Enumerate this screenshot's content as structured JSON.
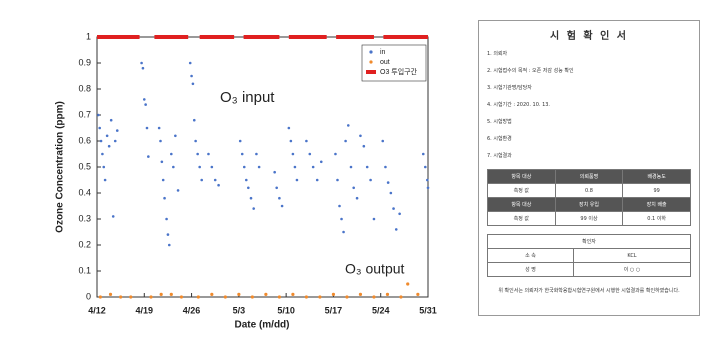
{
  "chart_data": {
    "type": "scatter",
    "ylabel": "Ozone Concentration (ppm)",
    "xlabel": "Date (m/dd)",
    "ylim": [
      0,
      1
    ],
    "yticks": [
      0,
      0.1,
      0.2,
      0.3,
      0.4,
      0.5,
      0.6,
      0.7,
      0.8,
      0.9,
      1
    ],
    "xlim": [
      0,
      49
    ],
    "xticks": [
      {
        "value": 0,
        "label": "4/12"
      },
      {
        "value": 7,
        "label": "4/19"
      },
      {
        "value": 14,
        "label": "4/26"
      },
      {
        "value": 21,
        "label": "5/3"
      },
      {
        "value": 28,
        "label": "5/10"
      },
      {
        "value": 35,
        "label": "5/17"
      },
      {
        "value": 42,
        "label": "5/24"
      },
      {
        "value": 49,
        "label": "5/31"
      }
    ],
    "grid": false,
    "legend": "upper right",
    "annotations": [
      {
        "text": "O₃ input",
        "color": "#5b8fd6"
      },
      {
        "text": "O₃ output",
        "color": "#f08a2c"
      }
    ],
    "series": [
      {
        "name": "in",
        "color": "#4a74c9",
        "kind": "points",
        "x": [
          0.2,
          0.4,
          0.6,
          0.8,
          1.0,
          1.2,
          1.5,
          1.8,
          2.1,
          2.4,
          2.7,
          3.0,
          6.6,
          6.8,
          7.0,
          7.2,
          7.4,
          7.6,
          9.2,
          9.4,
          9.6,
          9.8,
          10.0,
          10.3,
          10.5,
          10.7,
          11.0,
          11.3,
          11.6,
          12.0,
          13.8,
          14.0,
          14.2,
          14.4,
          14.6,
          14.9,
          15.2,
          15.5,
          16.5,
          17.0,
          17.5,
          18.0,
          21.2,
          21.5,
          21.8,
          22.1,
          22.4,
          22.8,
          23.2,
          23.6,
          24.0,
          26.3,
          26.6,
          27.0,
          27.4,
          28.4,
          28.7,
          29.0,
          29.3,
          29.6,
          31.0,
          31.5,
          32.0,
          32.6,
          33.2,
          35.3,
          35.6,
          35.9,
          36.2,
          36.5,
          36.8,
          37.2,
          37.6,
          38.0,
          38.5,
          39.0,
          39.5,
          40.0,
          40.5,
          41.0,
          42.3,
          42.7,
          43.1,
          43.5,
          43.9,
          44.3,
          44.8,
          48.3,
          48.6,
          48.9,
          49.0
        ],
        "values": [
          0.7,
          0.65,
          0.6,
          0.55,
          0.5,
          0.45,
          0.62,
          0.58,
          0.68,
          0.31,
          0.6,
          0.64,
          0.9,
          0.88,
          0.76,
          0.74,
          0.65,
          0.54,
          0.65,
          0.6,
          0.52,
          0.45,
          0.38,
          0.3,
          0.24,
          0.2,
          0.55,
          0.5,
          0.62,
          0.41,
          0.9,
          0.85,
          0.82,
          0.68,
          0.6,
          0.55,
          0.5,
          0.45,
          0.55,
          0.5,
          0.45,
          0.43,
          0.6,
          0.55,
          0.5,
          0.45,
          0.42,
          0.38,
          0.34,
          0.55,
          0.5,
          0.48,
          0.42,
          0.38,
          0.35,
          0.65,
          0.6,
          0.55,
          0.5,
          0.45,
          0.6,
          0.55,
          0.5,
          0.45,
          0.52,
          0.55,
          0.45,
          0.35,
          0.3,
          0.25,
          0.6,
          0.66,
          0.5,
          0.42,
          0.38,
          0.62,
          0.58,
          0.5,
          0.45,
          0.3,
          0.6,
          0.5,
          0.44,
          0.4,
          0.34,
          0.26,
          0.32,
          0.55,
          0.5,
          0.45,
          0.42
        ]
      },
      {
        "name": "out",
        "color": "#f08a2c",
        "kind": "points",
        "x": [
          0.5,
          2.0,
          3.5,
          5.0,
          8.0,
          9.5,
          11.0,
          12.5,
          15.0,
          17.0,
          19.0,
          21.0,
          23.0,
          25.0,
          27.0,
          29.0,
          31.0,
          33.0,
          35.0,
          37.0,
          39.0,
          41.0,
          43.0,
          45.0,
          46.0,
          47.5
        ],
        "values": [
          0,
          0.01,
          0,
          0,
          0,
          0.01,
          0.01,
          0,
          0,
          0.01,
          0,
          0.01,
          0,
          0.01,
          0,
          0.01,
          0,
          0,
          0.01,
          0,
          0.01,
          0,
          0.01,
          0,
          0.05,
          0.01
        ]
      },
      {
        "name": "O3 투입구간",
        "color": "#e02020",
        "kind": "line",
        "x": [
          0,
          6.3,
          null,
          8.5,
          13.5,
          null,
          15.2,
          20.3,
          null,
          21.7,
          27.0,
          null,
          28.4,
          34.0,
          null,
          35.4,
          41.0,
          null,
          42.4,
          49
        ],
        "values": [
          1,
          1,
          null,
          1,
          1,
          null,
          1,
          1,
          null,
          1,
          1,
          null,
          1,
          1,
          null,
          1,
          1,
          null,
          1,
          1
        ]
      }
    ]
  },
  "document": {
    "title": "시 험 확 인 서",
    "sections": [
      "1. 의뢰자",
      "2. 시험접수의 목적 : 오존 저감 성능 확인",
      "3. 시험기관명/담당자",
      "4. 시험기간 : 2020. 10. 13.",
      "5. 시험방법",
      "6. 시험환경",
      "7. 시험결과"
    ],
    "table": [
      [
        "항목 대상",
        "의뢰품명",
        "배경농도"
      ],
      [
        "측정 값",
        "0.8",
        "99"
      ],
      [
        "항목 대상",
        "장치 유입",
        "장치 배출"
      ],
      [
        "측정 값",
        "99 이상",
        "0.1 이하"
      ]
    ],
    "confirm_title": "확인자",
    "confirm": [
      [
        "소 속",
        "KCL"
      ],
      [
        "성 명",
        "이 ○ ○"
      ]
    ],
    "footer": "위 확인서는 의뢰자가 한국화학융합시험연구원에서 시행한 시험결과를 확인하였습니다."
  }
}
